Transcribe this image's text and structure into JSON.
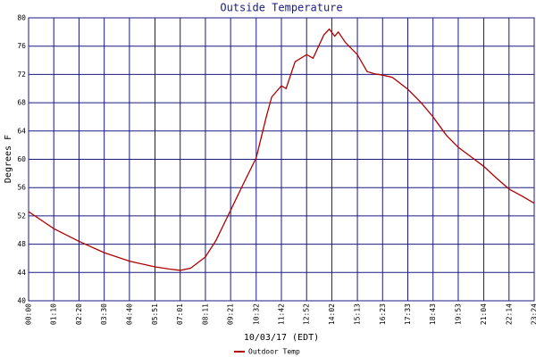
{
  "chart_data": {
    "type": "line",
    "title": "Outside Temperature",
    "x_label": "10/03/17 (EDT)",
    "y_label": "Degrees F",
    "x": [
      "00:00",
      "01:10",
      "02:20",
      "03:30",
      "04:40",
      "05:51",
      "06:30",
      "07:01",
      "07:30",
      "08:11",
      "08:40",
      "09:21",
      "09:56",
      "10:32",
      "11:00",
      "11:15",
      "11:42",
      "11:55",
      "12:20",
      "12:52",
      "13:10",
      "13:40",
      "13:55",
      "14:10",
      "14:20",
      "14:40",
      "15:13",
      "15:40",
      "16:00",
      "16:23",
      "16:50",
      "17:33",
      "18:10",
      "18:43",
      "19:20",
      "19:53",
      "20:30",
      "21:04",
      "21:40",
      "22:14",
      "22:50",
      "23:24"
    ],
    "series": [
      {
        "name": "Outdoor Temp",
        "color": "#b00000",
        "values": [
          52.6,
          50.2,
          48.4,
          46.8,
          45.6,
          44.8,
          44.5,
          44.3,
          44.6,
          46.2,
          48.5,
          52.8,
          56.5,
          60.2,
          66.0,
          68.8,
          70.4,
          70.0,
          73.8,
          74.8,
          74.3,
          77.6,
          78.4,
          77.4,
          78.0,
          76.5,
          74.8,
          72.4,
          72.1,
          71.9,
          71.6,
          69.9,
          68.0,
          66.0,
          63.4,
          61.7,
          60.3,
          59.0,
          57.3,
          55.8,
          54.8,
          53.8
        ]
      }
    ],
    "xlim": [
      "00:00",
      "23:24"
    ],
    "xticks": [
      "00:00",
      "01:10",
      "02:20",
      "03:30",
      "04:40",
      "05:51",
      "07:01",
      "08:11",
      "09:21",
      "10:32",
      "11:42",
      "12:52",
      "14:02",
      "15:13",
      "16:23",
      "17:33",
      "18:43",
      "19:53",
      "21:04",
      "22:14",
      "23:24"
    ],
    "ylim": [
      40,
      80
    ],
    "yticks": [
      40,
      44,
      48,
      52,
      56,
      60,
      64,
      68,
      72,
      76,
      80
    ],
    "grid": true,
    "grid_color": "#1a1a80",
    "legend": "bottom"
  }
}
